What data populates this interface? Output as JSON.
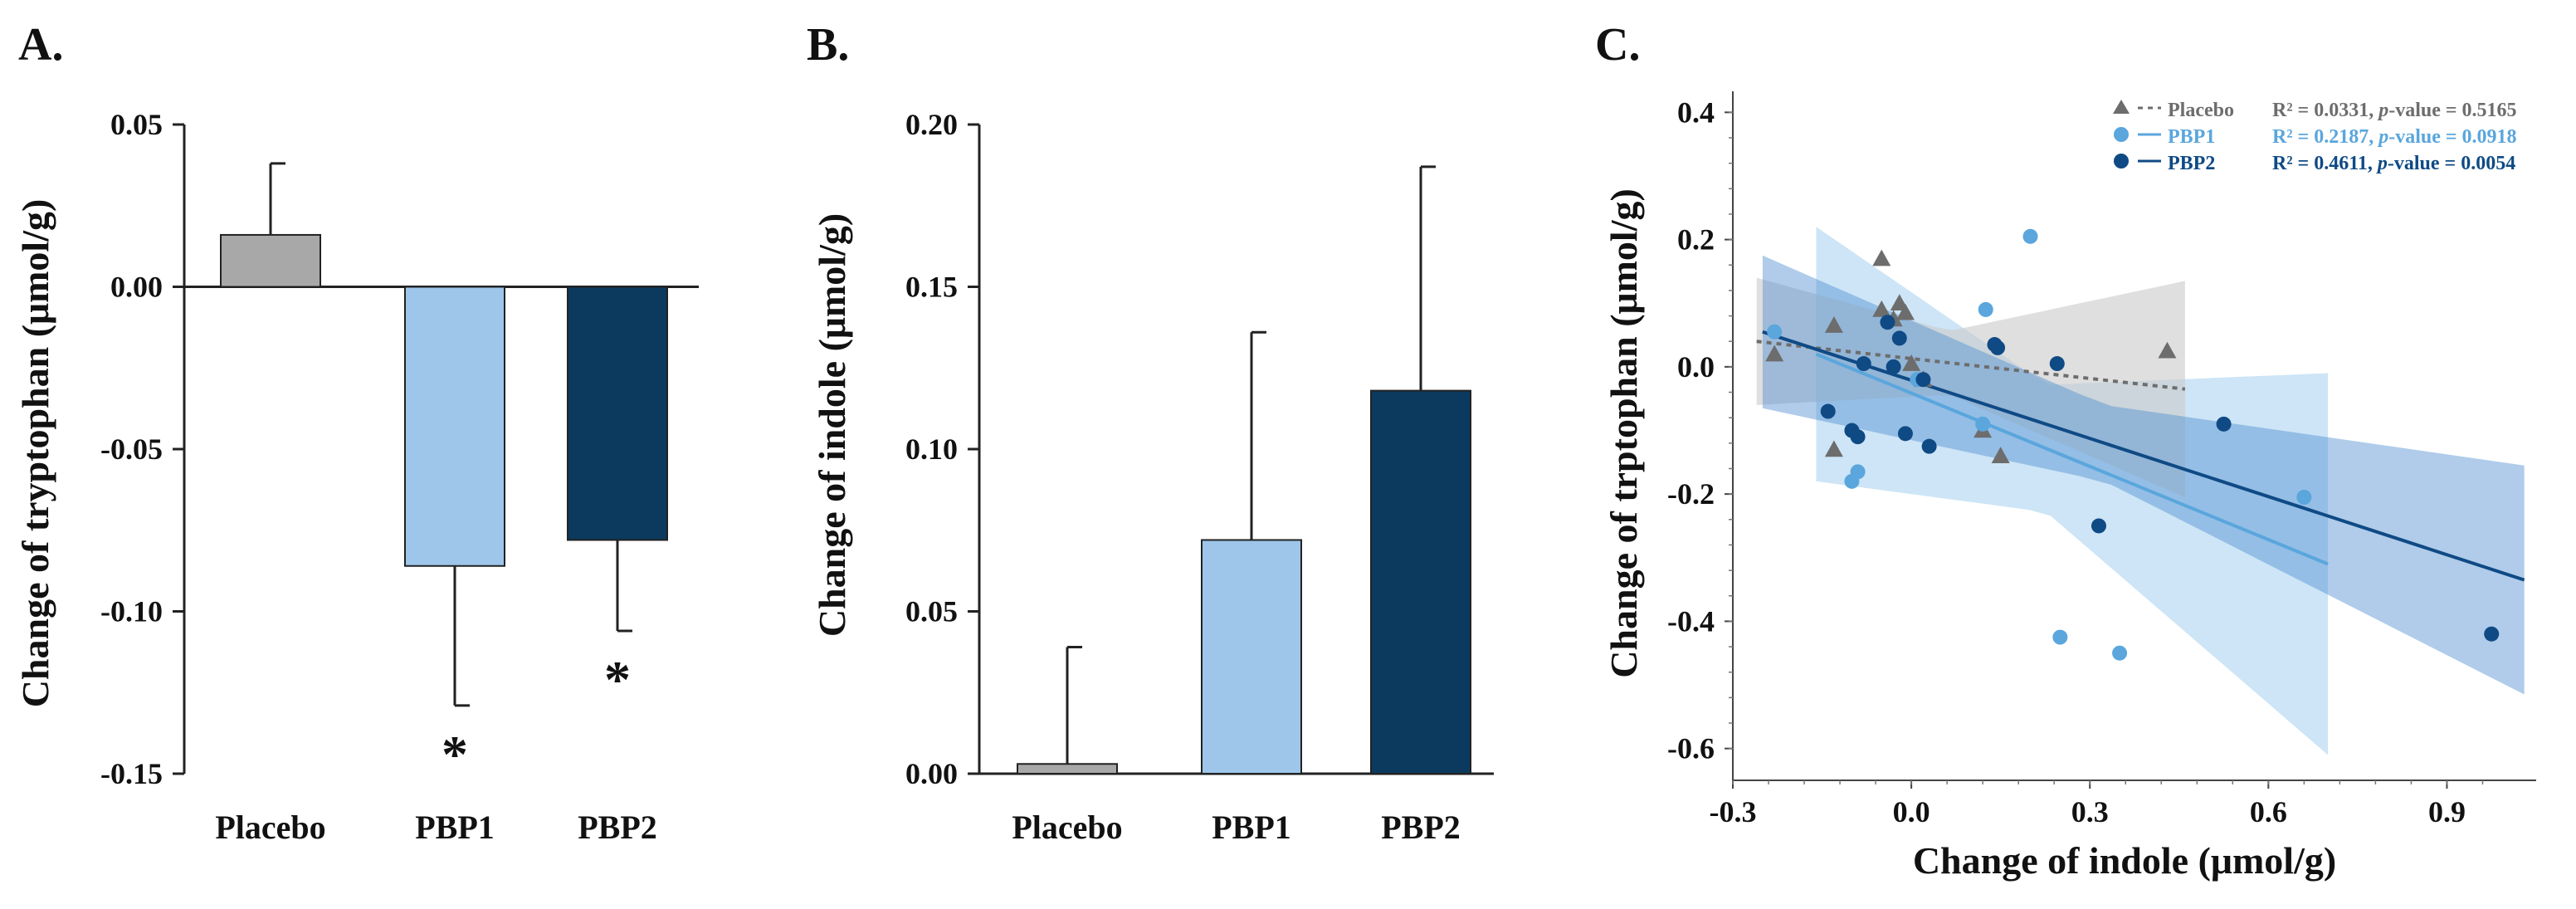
{
  "panels": [
    {
      "label": "A."
    },
    {
      "label": "B."
    },
    {
      "label": "C."
    }
  ],
  "chart_data": [
    {
      "type": "bar",
      "ylabel": "Change of tryptophan (μmol/g)",
      "categories": [
        "Placebo",
        "PBP1",
        "PBP2"
      ],
      "values": [
        0.016,
        -0.086,
        -0.078
      ],
      "errors": [
        0.022,
        0.043,
        0.028
      ],
      "error_direction": [
        "up",
        "down",
        "down"
      ],
      "significance": [
        "",
        "*",
        "*"
      ],
      "colors": [
        "#a8a8a8",
        "#9dc6ea",
        "#0c3a5e"
      ],
      "ylim": [
        -0.15,
        0.05
      ],
      "yticks": [
        "0.05",
        "0.00",
        "-0.05",
        "-0.10",
        "-0.15"
      ],
      "ytick_values": [
        0.05,
        0.0,
        -0.05,
        -0.1,
        -0.15
      ]
    },
    {
      "type": "bar",
      "ylabel": "Change of indole (μmol/g)",
      "categories": [
        "Placebo",
        "PBP1",
        "PBP2"
      ],
      "values": [
        0.003,
        0.072,
        0.118
      ],
      "errors": [
        0.036,
        0.064,
        0.069
      ],
      "error_direction": [
        "up",
        "up",
        "up"
      ],
      "colors": [
        "#a8a8a8",
        "#9dc6ea",
        "#0c3a5e"
      ],
      "ylim": [
        0,
        0.2
      ],
      "yticks": [
        "0.20",
        "0.15",
        "0.10",
        "0.05",
        "0.00"
      ],
      "ytick_values": [
        0.2,
        0.15,
        0.1,
        0.05,
        0.0
      ]
    },
    {
      "type": "scatter",
      "xlabel": "Change of indole (μmol/g)",
      "ylabel": "Change of trptophan (μmol/g)",
      "xlim": [
        -0.3,
        1.05
      ],
      "ylim": [
        -0.65,
        0.42
      ],
      "xticks": [
        "-0.3",
        "0.0",
        "0.3",
        "0.6",
        "0.9"
      ],
      "xtick_values": [
        -0.3,
        0.0,
        0.3,
        0.6,
        0.9
      ],
      "yticks": [
        "0.4",
        "0.2",
        "0.0",
        "-0.2",
        "-0.4",
        "-0.6"
      ],
      "ytick_values": [
        0.4,
        0.2,
        0.0,
        -0.2,
        -0.4,
        -0.6
      ],
      "series": [
        {
          "name": "Placebo",
          "marker": "triangle",
          "color": "#6d6d6d",
          "line_style": "dotted",
          "stat_r2": "R² = 0.0331, ",
          "stat_p_label": "p",
          "stat_p_rest": "-value = 0.5165",
          "fit": {
            "x": [
              -0.26,
              0.46
            ],
            "y": [
              0.04,
              -0.035
            ]
          },
          "band_color": "#c9c9c9",
          "points": [
            [
              -0.23,
              0.02
            ],
            [
              -0.13,
              0.065
            ],
            [
              -0.05,
              0.17
            ],
            [
              -0.05,
              0.09
            ],
            [
              -0.02,
              0.1
            ],
            [
              -0.01,
              0.085
            ],
            [
              -0.03,
              0.075
            ],
            [
              0.0,
              0.005
            ],
            [
              0.02,
              -0.02
            ],
            [
              0.12,
              -0.1
            ],
            [
              0.15,
              -0.14
            ],
            [
              -0.13,
              -0.13
            ],
            [
              0.43,
              0.025
            ]
          ]
        },
        {
          "name": "PBP1",
          "marker": "circle",
          "color": "#5aa6dd",
          "line_style": "solid",
          "stat_r2": "R² = 0.2187, ",
          "stat_p_label": "p",
          "stat_p_rest": "-value = 0.0918",
          "fit": {
            "x": [
              -0.16,
              0.7
            ],
            "y": [
              0.02,
              -0.31
            ]
          },
          "band_color": "#bcdcf3",
          "points": [
            [
              -0.23,
              0.055
            ],
            [
              -0.1,
              -0.18
            ],
            [
              -0.09,
              -0.165
            ],
            [
              0.12,
              -0.09
            ],
            [
              0.125,
              0.09
            ],
            [
              0.2,
              0.205
            ],
            [
              0.25,
              -0.425
            ],
            [
              0.35,
              -0.45
            ],
            [
              0.66,
              -0.205
            ],
            [
              0.01,
              -0.02
            ]
          ]
        },
        {
          "name": "PBP2",
          "marker": "circle",
          "color": "#0f4a85",
          "line_style": "solid",
          "stat_r2": "R² = 0.4611, ",
          "stat_p_label": "p",
          "stat_p_rest": "-value = 0.0054",
          "fit": {
            "x": [
              -0.25,
              1.03
            ],
            "y": [
              0.055,
              -0.335
            ]
          },
          "band_color": "#4f8fd0",
          "points": [
            [
              -0.14,
              -0.07
            ],
            [
              -0.1,
              -0.1
            ],
            [
              -0.09,
              -0.11
            ],
            [
              -0.04,
              0.07
            ],
            [
              -0.02,
              0.045
            ],
            [
              -0.01,
              -0.105
            ],
            [
              0.02,
              -0.02
            ],
            [
              0.03,
              -0.125
            ],
            [
              0.14,
              0.035
            ],
            [
              0.145,
              0.03
            ],
            [
              0.245,
              0.005
            ],
            [
              0.315,
              -0.25
            ],
            [
              0.525,
              -0.09
            ],
            [
              0.975,
              -0.42
            ],
            [
              -0.08,
              0.005
            ],
            [
              -0.03,
              0.0
            ]
          ]
        }
      ]
    }
  ]
}
